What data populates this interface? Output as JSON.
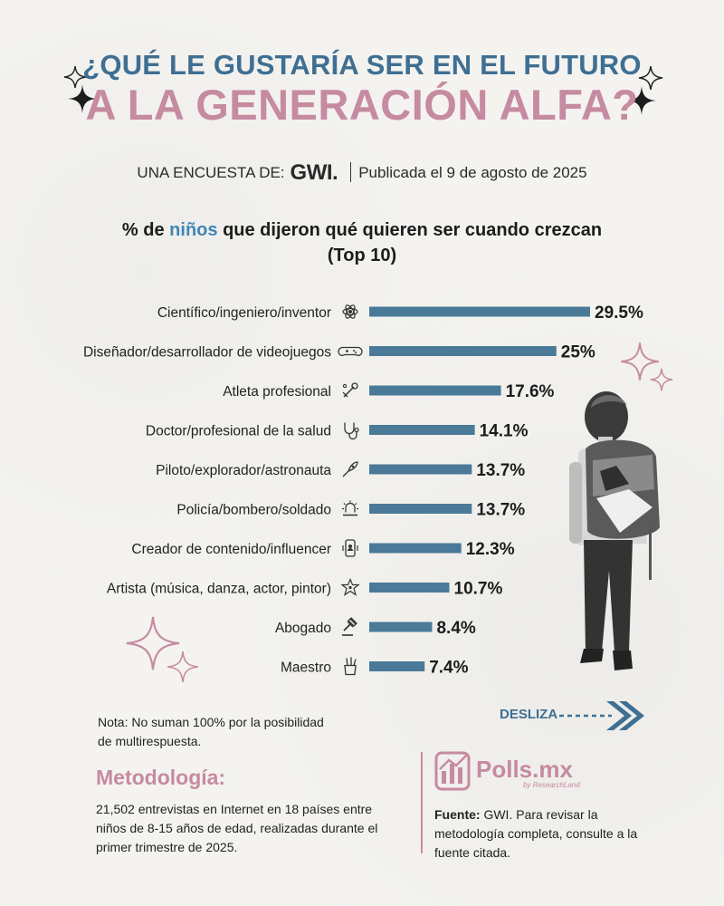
{
  "header": {
    "title_line1": "¿QUÉ LE GUSTARÍA SER EN EL FUTURO",
    "title_line2": "A LA GENERACIÓN ALFA?",
    "survey_prefix": "UNA ENCUESTA DE:",
    "survey_brand": "GWI.",
    "published": "Publicada el 9 de agosto de 2025",
    "subtitle_before": "% de ",
    "subtitle_highlight": "niños",
    "subtitle_after": " que dijeron qué quieren ser cuando crezcan",
    "subtitle_line2": "(Top 10)"
  },
  "colors": {
    "bar": "#4a7a98",
    "title_blue": "#3f6f93",
    "title_pink": "#c68aa1",
    "highlight": "#3f86b5"
  },
  "chart_data": {
    "type": "bar",
    "orientation": "horizontal",
    "categories": [
      "Científico/ingeniero/inventor",
      "Diseñador/desarrollador de videojuegos",
      "Atleta profesional",
      "Doctor/profesional de la salud",
      "Piloto/explorador/astronauta",
      "Policía/bombero/soldado",
      "Creador de contenido/influencer",
      "Artista (música, danza, actor, pintor)",
      "Abogado",
      "Maestro"
    ],
    "icons": [
      "atom-icon",
      "gamepad-icon",
      "sports-icon",
      "stethoscope-icon",
      "rocket-icon",
      "siren-icon",
      "phone-influencer-icon",
      "star-artist-icon",
      "gavel-icon",
      "pencil-cup-icon"
    ],
    "values": [
      29.5,
      25,
      17.6,
      14.1,
      13.7,
      13.7,
      12.3,
      10.7,
      8.4,
      7.4
    ],
    "value_labels": [
      "29.5%",
      "25%",
      "17.6%",
      "14.1%",
      "13.7%",
      "13.7%",
      "12.3%",
      "10.7%",
      "8.4%",
      "7.4%"
    ],
    "xlim": [
      0,
      29.5
    ],
    "grid": false,
    "legend": "none"
  },
  "footer": {
    "note": "Nota: No suman 100% por la posibilidad de multirespuesta.",
    "swipe": "DESLIZA",
    "method_title": "Metodología:",
    "method_text": "21,502 entrevistas en Internet en 18 países entre niños de 8-15 años de edad, realizadas durante el primer trimestre de 2025.",
    "logo_text": "Polls.mx",
    "logo_sub": "by ResearchLand",
    "source_label": "Fuente:",
    "source_text": " GWI. Para revisar la metodología completa, consulte a la fuente citada."
  }
}
